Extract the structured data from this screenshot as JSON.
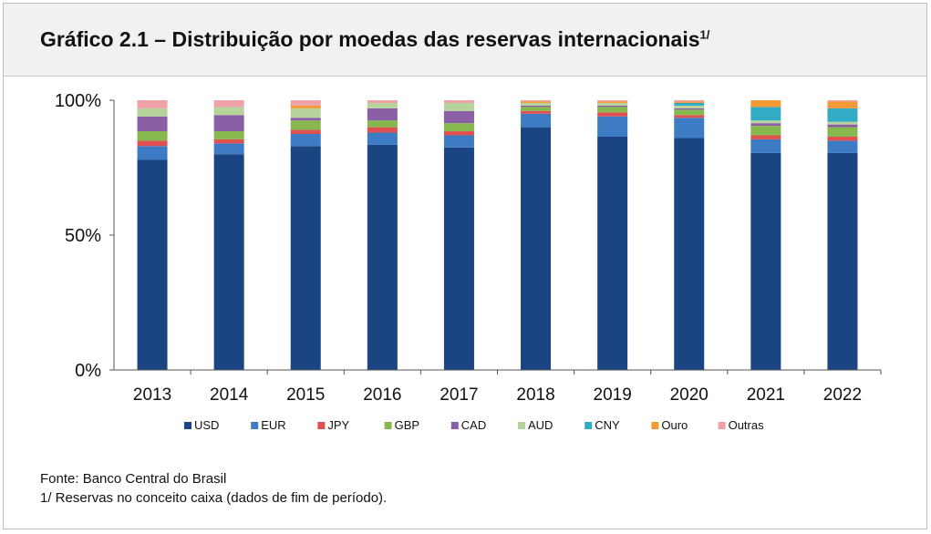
{
  "title": {
    "text": "Gráfico 2.1 – Distribuição por moedas das reservas internacionais",
    "sup": "1/"
  },
  "footer": {
    "source": "Fonte: Banco Central do Brasil",
    "note": "1/ Reservas no conceito caixa (dados de fim de período)."
  },
  "chart_data": {
    "type": "bar",
    "stacked": true,
    "title": "Gráfico 2.1 – Distribuição por moedas das reservas internacionais",
    "xlabel": "",
    "ylabel": "",
    "ylim": [
      0,
      100
    ],
    "y_ticks": [
      "0%",
      "50%",
      "100%"
    ],
    "y_tick_values": [
      0,
      50,
      100
    ],
    "grid": false,
    "legend_position": "bottom",
    "categories": [
      "2013",
      "2014",
      "2015",
      "2016",
      "2017",
      "2018",
      "2019",
      "2020",
      "2021",
      "2022"
    ],
    "series": [
      {
        "name": "USD",
        "color": "#1b4483",
        "values": [
          78,
          80,
          83,
          83.5,
          82.5,
          90,
          86.5,
          86,
          80.5,
          80.5
        ]
      },
      {
        "name": "EUR",
        "color": "#3d7cc4",
        "values": [
          5,
          4,
          4.5,
          4.5,
          4.5,
          5,
          7.5,
          7.5,
          5,
          4.5
        ]
      },
      {
        "name": "JPY",
        "color": "#e05050",
        "values": [
          2,
          1.5,
          1.5,
          2,
          1.5,
          1,
          1.5,
          1,
          1.5,
          1.5
        ]
      },
      {
        "name": "GBP",
        "color": "#86b84e",
        "values": [
          3.5,
          3,
          3.5,
          2.5,
          3,
          1.5,
          2,
          2,
          3.5,
          3.5
        ]
      },
      {
        "name": "CAD",
        "color": "#8b5fa6",
        "values": [
          5.5,
          6,
          1,
          4.5,
          4.5,
          0.5,
          0.5,
          0.5,
          1,
          1
        ]
      },
      {
        "name": "AUD",
        "color": "#b5d39a",
        "values": [
          3,
          3,
          3.5,
          2,
          3,
          1,
          1,
          1,
          1,
          1
        ]
      },
      {
        "name": "CNY",
        "color": "#32abc6",
        "values": [
          0,
          0,
          0,
          0,
          0,
          0,
          0,
          1,
          5,
          5
        ]
      },
      {
        "name": "Ouro",
        "color": "#f29a35",
        "values": [
          0,
          0,
          1,
          0,
          0,
          0.5,
          0.5,
          0.5,
          2.5,
          2.5
        ]
      },
      {
        "name": "Outras",
        "color": "#eea1a7",
        "values": [
          3,
          2.5,
          2,
          1,
          1,
          0.5,
          0.5,
          0.5,
          0,
          0.5
        ]
      }
    ]
  }
}
